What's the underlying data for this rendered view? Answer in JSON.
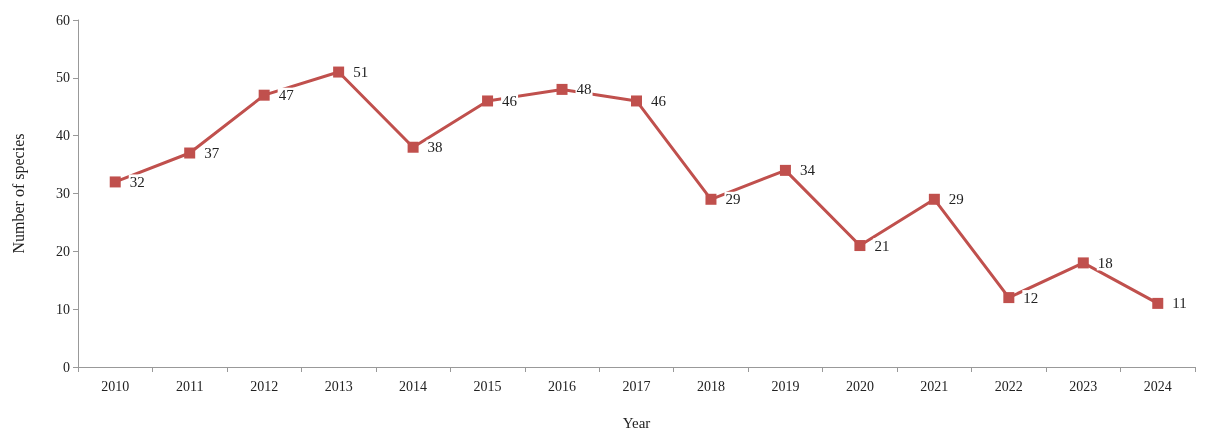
{
  "chart_data": {
    "type": "line",
    "xlabel": "Year",
    "ylabel": "Number of species",
    "categories": [
      "2010",
      "2011",
      "2012",
      "2013",
      "2014",
      "2015",
      "2016",
      "2017",
      "2018",
      "2019",
      "2020",
      "2021",
      "2022",
      "2023",
      "2024"
    ],
    "series": [
      {
        "color": "#c0504d",
        "values": [
          32,
          37,
          47,
          51,
          38,
          46,
          48,
          46,
          29,
          34,
          21,
          29,
          12,
          18,
          11
        ]
      }
    ],
    "ylim": [
      0,
      60
    ],
    "yticks": [
      0,
      10,
      20,
      30,
      40,
      50,
      60
    ],
    "grid": false,
    "marker": "square",
    "line_style": "solid",
    "data_labels": true
  }
}
